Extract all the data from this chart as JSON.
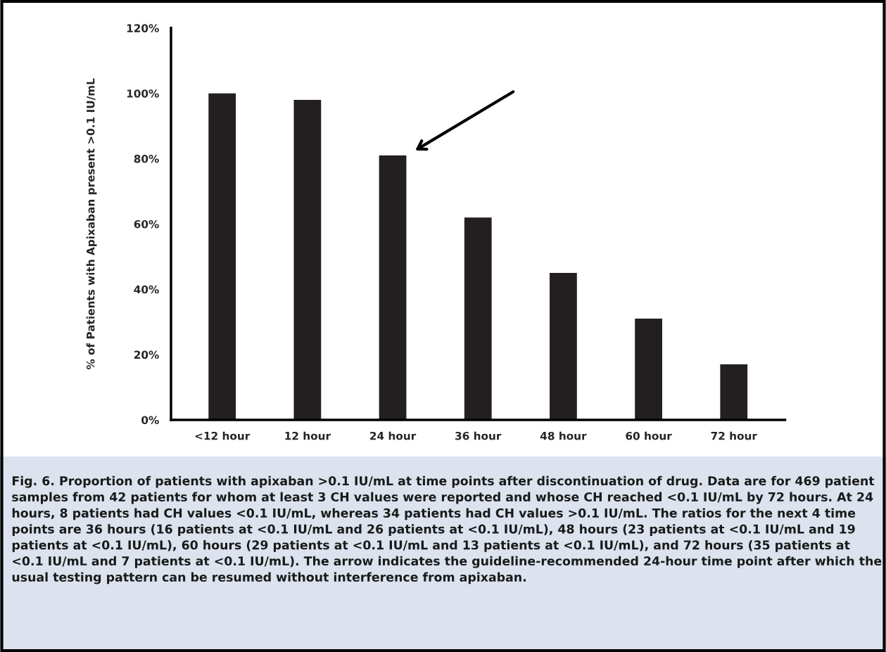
{
  "chart_data": {
    "type": "bar",
    "ylabel": "% of Patients with Apixaban present >0.1 IU/mL",
    "categories": [
      "<12 hour",
      "12 hour",
      "24 hour",
      "36 hour",
      "48 hour",
      "60 hour",
      "72 hour"
    ],
    "values": [
      100,
      98,
      81,
      62,
      45,
      31,
      17
    ],
    "color": "#231f20",
    "ylim": [
      0,
      120
    ],
    "yticks": [
      {
        "value": 0,
        "label": "0%"
      },
      {
        "value": 20,
        "label": "20%"
      },
      {
        "value": 40,
        "label": "40%"
      },
      {
        "value": 60,
        "label": "60%"
      },
      {
        "value": 80,
        "label": "80%"
      },
      {
        "value": 100,
        "label": "100%"
      },
      {
        "value": 120,
        "label": "120%"
      }
    ],
    "grid": false,
    "annotations": [
      "Fig. 6. Proportion of patients with apixaban >0.1 IU/mL at time points after discontinuation of drug. Data are for 469 patient samples from 42 patients for whom at least 3 CH values were reported and whose CH reached <0.1 IU/mL by 72 hours. At 24 hours, 8 patients had CH values <0.1 IU/mL, whereas 34 patients had CH values >0.1 IU/mL. The ratios for the next 4 time points are 36 hours (16 patients at <0.1 IU/mL and 26 patients at <0.1 IU/mL), 48 hours (23 patients at <0.1 IU/mL and 19 patients at <0.1 IU/mL), 60 hours (29 patients at <0.1 IU/mL and 13 patients at <0.1 IU/mL), and 72 hours (35 patients at <0.1 IU/mL and 7 patients at <0.1 IU/mL). The arrow indicates the guideline-recommended 24-hour time point after which the usual testing pattern can be resumed without interference from apixaban."
    ]
  }
}
